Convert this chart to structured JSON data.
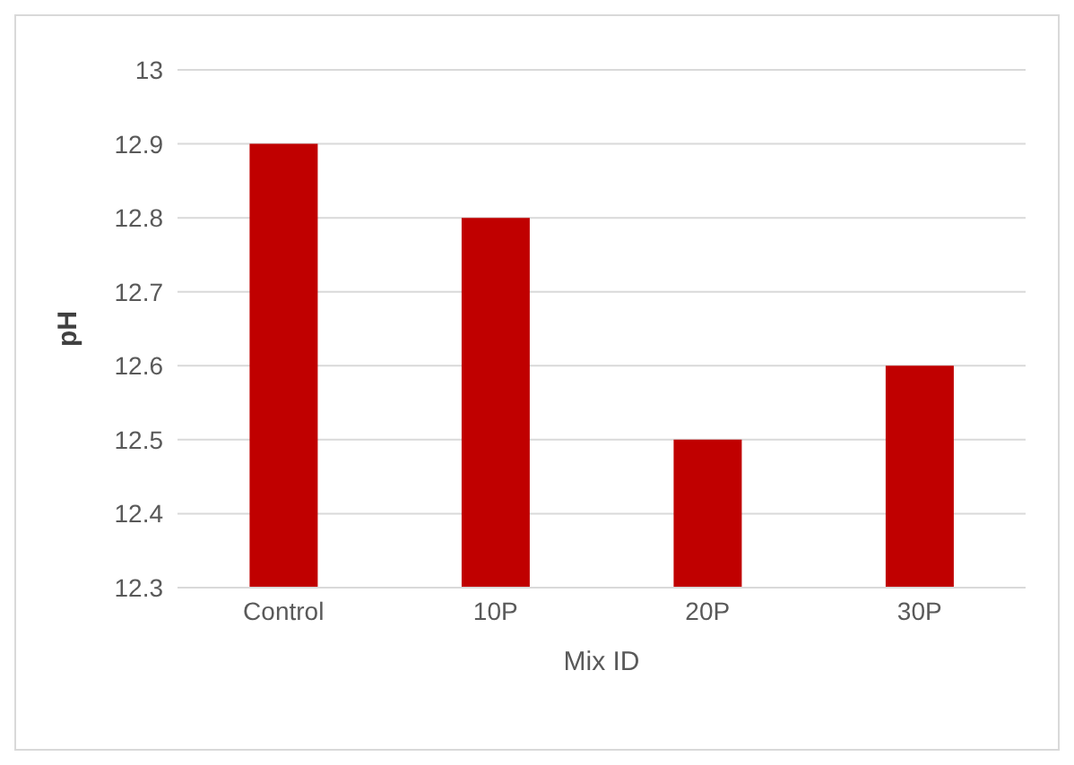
{
  "chart_data": {
    "type": "bar",
    "xlabel": "Mix ID",
    "ylabel": "pH",
    "categories": [
      "Control",
      "10P",
      "20P",
      "30P"
    ],
    "values": [
      12.9,
      12.8,
      12.5,
      12.6
    ],
    "color": "#c00000",
    "ylim": [
      12.3,
      13
    ],
    "yticks": [
      12.3,
      12.4,
      12.5,
      12.6,
      12.7,
      12.8,
      12.9,
      13
    ],
    "grid": "y",
    "legend": false
  }
}
